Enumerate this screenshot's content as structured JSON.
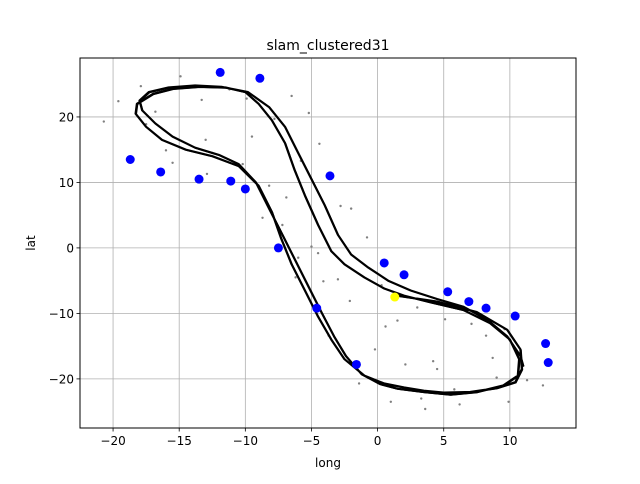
{
  "chart_data": {
    "type": "scatter",
    "title": "slam_clustered31",
    "xlabel": "long",
    "ylabel": "lat",
    "xlim": [
      -22.5,
      15
    ],
    "ylim": [
      -27.5,
      29
    ],
    "xticks": [
      -20,
      -15,
      -10,
      -5,
      0,
      5,
      10
    ],
    "yticks": [
      -20,
      -10,
      0,
      10,
      20
    ],
    "xtick_labels": [
      "−20",
      "−15",
      "−10",
      "−5",
      "0",
      "5",
      "10"
    ],
    "ytick_labels": [
      "−20",
      "−10",
      "0",
      "10",
      "20"
    ],
    "grid": true,
    "colors": {
      "trajectory": "#000000",
      "landmarks": "#0000ff",
      "current_pose": "#ffff00",
      "raw_points": "#808080",
      "grid": "#b0b0b0"
    },
    "trajectory": {
      "x": [
        1.2,
        4.5,
        7.5,
        9.8,
        10.8,
        10.9,
        10.4,
        9.0,
        7.0,
        5.0,
        3.5,
        2.0,
        0.5,
        -1.0,
        -2.5,
        -3.5,
        -4.5,
        -5.5,
        -6.5,
        -7.3,
        -8.0,
        -9.0,
        -10.5,
        -12.5,
        -14.5,
        -16.3,
        -17.5,
        -18.3,
        -18.2,
        -17.0,
        -15.5,
        -13.5,
        -11.5,
        -10.0,
        -9.0,
        -8.0,
        -7.0,
        -6.3,
        -5.5,
        -4.5,
        -3.5,
        -2.5,
        -1.0,
        0.5,
        2.0,
        4.0,
        6.5,
        8.5,
        10.0,
        10.7,
        10.6,
        9.5,
        7.5,
        5.5,
        3.5,
        1.5,
        0.2,
        -1.2,
        -2.4,
        -3.3,
        -4.2,
        -5.2,
        -6.2,
        -7.2,
        -8.2,
        -9.2,
        -10.5,
        -12.0,
        -13.8,
        -15.5,
        -16.8,
        -17.8,
        -18.0,
        -17.3,
        -15.8,
        -13.8,
        -11.8,
        -9.8,
        -8.2,
        -7.0,
        -6.0,
        -5.0,
        -4.0,
        -3.0,
        -2.0,
        -0.7,
        0.8,
        2.5,
        4.5,
        6.5,
        8.3,
        9.8,
        10.8,
        11.0
      ],
      "y": [
        -7.2,
        -8.2,
        -9.8,
        -12.5,
        -15.5,
        -18.5,
        -20.5,
        -21.4,
        -22.0,
        -22.1,
        -21.8,
        -21.3,
        -20.7,
        -19.5,
        -17.0,
        -14.0,
        -10.5,
        -6.5,
        -2.5,
        1.5,
        5.5,
        9.5,
        12.5,
        14.0,
        15.0,
        16.5,
        18.5,
        20.5,
        22.0,
        23.5,
        24.3,
        24.6,
        24.5,
        23.8,
        22.0,
        19.5,
        16.0,
        12.0,
        8.0,
        3.5,
        -0.5,
        -2.5,
        -4.5,
        -6.2,
        -7.3,
        -8.3,
        -9.5,
        -11.5,
        -14.0,
        -17.0,
        -19.5,
        -21.0,
        -22.0,
        -22.4,
        -22.0,
        -21.5,
        -20.8,
        -19.3,
        -16.5,
        -13.5,
        -10.0,
        -6.0,
        -2.0,
        2.0,
        6.0,
        10.0,
        12.8,
        14.2,
        15.3,
        17.0,
        19.0,
        21.0,
        22.5,
        23.8,
        24.5,
        24.8,
        24.6,
        23.8,
        21.5,
        18.5,
        14.5,
        10.5,
        6.5,
        2.0,
        -1.0,
        -3.0,
        -5.0,
        -6.5,
        -7.8,
        -9.0,
        -11.0,
        -13.5,
        -16.5,
        -18.0
      ]
    },
    "landmarks": {
      "x": [
        -11.9,
        -8.9,
        -18.7,
        -16.4,
        -13.5,
        -11.1,
        -10.0,
        -7.5,
        -3.6,
        -4.6,
        -1.6,
        0.5,
        2.0,
        5.3,
        6.9,
        8.2,
        10.4,
        12.7,
        12.9
      ],
      "y": [
        26.8,
        25.9,
        13.5,
        11.6,
        10.5,
        10.2,
        9.0,
        0.0,
        11.0,
        -9.2,
        -17.8,
        -2.3,
        -4.1,
        -6.7,
        -8.2,
        -9.2,
        -10.4,
        -14.6,
        -17.5
      ]
    },
    "current_pose": {
      "x": 1.3,
      "y": -7.5
    },
    "raw_points": {
      "x": [
        -20.7,
        -19.6,
        -17.9,
        -16.8,
        -16.0,
        -14.9,
        -13.3,
        -12.5,
        -11.2,
        -10.2,
        -9.9,
        -8.7,
        -7.8,
        -6.9,
        -6.5,
        -6.2,
        -5.8,
        -5.2,
        -5.0,
        -4.4,
        -4.1,
        -3.7,
        -3.0,
        -2.8,
        -2.1,
        -1.8,
        -1.4,
        -0.8,
        -0.2,
        0.3,
        1.0,
        1.5,
        2.1,
        3.0,
        3.6,
        4.2,
        5.1,
        5.8,
        6.2,
        7.1,
        7.5,
        8.2,
        9.0,
        9.6,
        9.9,
        10.6,
        11.3,
        12.5,
        -13.0,
        -17.5,
        -15.5,
        -7.2,
        -4.5,
        -2.0,
        4.5,
        8.7,
        -9.5,
        -6.0,
        0.6,
        3.3,
        -12.9,
        -8.2
      ],
      "y": [
        19.3,
        22.4,
        24.7,
        20.8,
        14.9,
        26.2,
        22.6,
        14.5,
        24.2,
        12.8,
        22.8,
        4.6,
        19.7,
        7.7,
        23.2,
        -4.5,
        13.3,
        20.6,
        0.2,
        15.9,
        -5.1,
        -13.4,
        -4.8,
        6.4,
        -8.1,
        -18.1,
        -20.7,
        1.6,
        -15.5,
        -5.7,
        -23.5,
        -11.1,
        -17.8,
        -9.1,
        -24.6,
        -17.3,
        -10.9,
        -21.6,
        -23.9,
        -11.6,
        -21.9,
        -13.4,
        -19.8,
        -12.4,
        -23.5,
        -16.4,
        -20.2,
        -21.0,
        16.5,
        18.9,
        13.0,
        3.5,
        -0.8,
        6.0,
        -18.5,
        -16.8,
        17.0,
        -1.5,
        -12.0,
        -23.0,
        11.3,
        9.5
      ]
    }
  }
}
